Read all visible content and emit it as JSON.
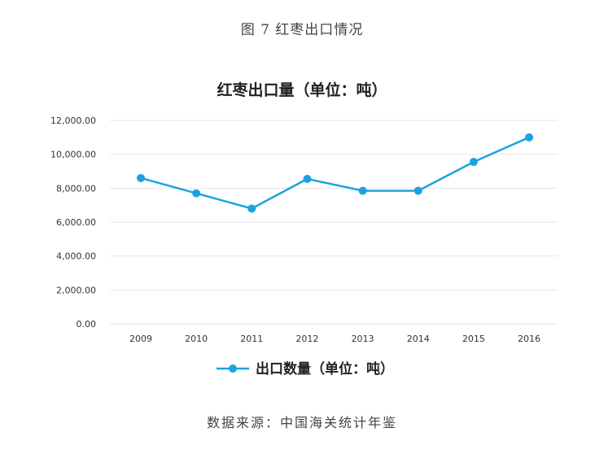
{
  "figure_caption": "图 7   红枣出口情况",
  "source_note": "数据来源：中国海关统计年鉴",
  "colors": {
    "series": "#1aa3e0",
    "grid": "#e6e6e6"
  },
  "chart_data": {
    "type": "line",
    "title": "红枣出口量（单位：吨）",
    "x": [
      "2009",
      "2010",
      "2011",
      "2012",
      "2013",
      "2014",
      "2015",
      "2016"
    ],
    "series": [
      {
        "name": "出口数量（单位：吨）",
        "values": [
          8600,
          7700,
          6800,
          8550,
          7850,
          7850,
          9550,
          11000
        ]
      }
    ],
    "ylim": [
      0,
      12000
    ],
    "yticks": [
      0,
      2000,
      4000,
      6000,
      8000,
      10000,
      12000
    ],
    "ytick_labels": [
      "0.00",
      "2,000.00",
      "4,000.00",
      "6,000.00",
      "8,000.00",
      "10,000.00",
      "12,000.00"
    ],
    "grid": true,
    "legend_position": "bottom"
  }
}
